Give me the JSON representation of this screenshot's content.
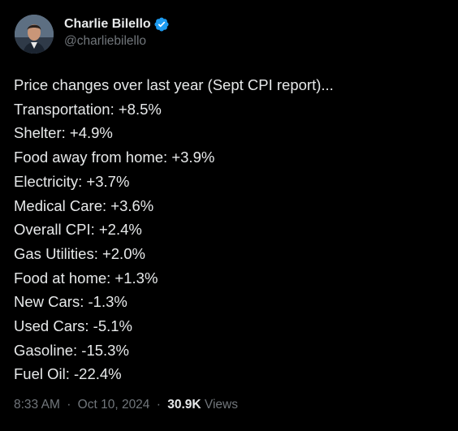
{
  "author": {
    "display_name": "Charlie Bilello",
    "handle": "@charliebilello",
    "verified_color": "#1d9bf0"
  },
  "tweet": {
    "lines": [
      "Price changes over last year (Sept CPI report)...",
      "Transportation: +8.5%",
      "Shelter: +4.9%",
      "Food away from home: +3.9%",
      "Electricity: +3.7%",
      "Medical Care: +3.6%",
      "Overall CPI: +2.4%",
      "Gas Utilities: +2.0%",
      "Food at home: +1.3%",
      "New Cars: -1.3%",
      "Used Cars: -5.1%",
      "Gasoline: -15.3%",
      "Fuel Oil: -22.4%"
    ]
  },
  "meta": {
    "time": "8:33 AM",
    "date": "Oct 10, 2024",
    "separator": "·",
    "views_count": "30.9K",
    "views_label": "Views"
  },
  "icons": {
    "verified": "verified-badge-icon"
  }
}
